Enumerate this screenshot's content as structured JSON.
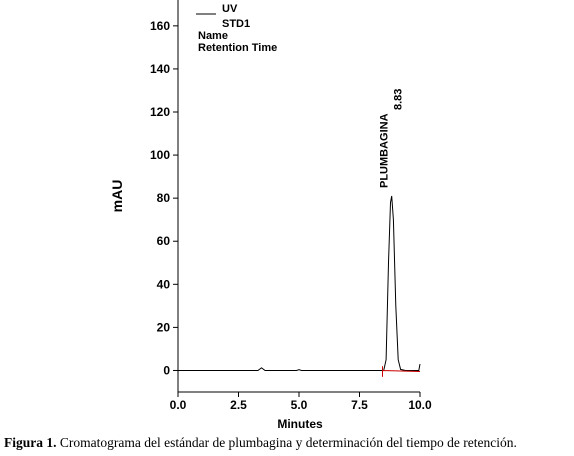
{
  "chart_data": {
    "type": "line",
    "xlabel": "Minutes",
    "ylabel": "mAU",
    "xlim": [
      0,
      10
    ],
    "ylim": [
      -10,
      172
    ],
    "xticks": [
      {
        "value": 0,
        "label": "0.0"
      },
      {
        "value": 2.5,
        "label": "2.5"
      },
      {
        "value": 5,
        "label": "5.0"
      },
      {
        "value": 7.5,
        "label": "7.5"
      },
      {
        "value": 10,
        "label": "10.0"
      }
    ],
    "yticks": [
      0,
      20,
      40,
      60,
      80,
      100,
      120,
      140,
      160
    ],
    "series": [
      {
        "name": "UV",
        "color": "#000000",
        "x": [
          0,
          3.3,
          3.45,
          3.6,
          4.9,
          5.0,
          5.1,
          8.5,
          8.6,
          8.7,
          8.78,
          8.83,
          8.9,
          9.0,
          9.1,
          9.2,
          9.4,
          9.95,
          10
        ],
        "values": [
          0,
          0,
          1.2,
          0,
          0,
          0.4,
          0,
          0,
          5,
          50,
          78,
          81,
          70,
          30,
          5,
          0.5,
          0,
          0,
          3
        ]
      },
      {
        "color": "#cc0000",
        "x": [
          8.45,
          8.45,
          8.45,
          10
        ],
        "values": [
          -3,
          2,
          0,
          -0.5
        ]
      }
    ],
    "legend_extra": [
      "STD1",
      "Name",
      "Retention Time"
    ],
    "annotation": {
      "text": "PLUMBAGINA",
      "x": 8.83,
      "y": 81
    },
    "caption": {
      "label": "Figura 1.",
      "text": " Cromatograma del estándar de plumbagina y determinación del tiempo de retención."
    }
  }
}
